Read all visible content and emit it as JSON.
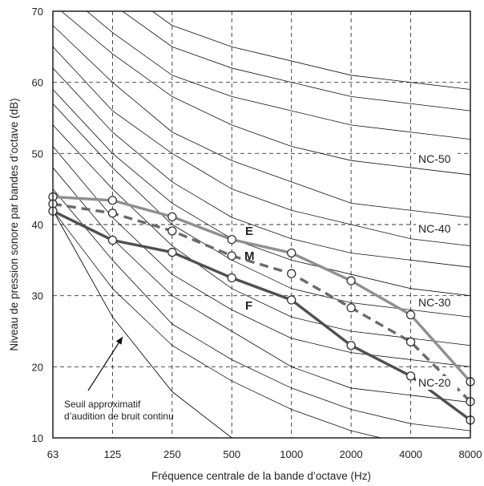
{
  "chart_data": {
    "type": "line",
    "xlabel": "Fréquence centrale de la bande d’octave (Hz)",
    "ylabel": "Niveau de pression sonore par bandes d’octave (dB)",
    "x": [
      "63",
      "125",
      "250",
      "500",
      "1000",
      "2000",
      "4000",
      "8000"
    ],
    "ylim": [
      10,
      70
    ],
    "yticks": [
      10,
      20,
      30,
      40,
      50,
      60,
      70
    ],
    "grid": true,
    "nc_curves": [
      {
        "values": [
          68,
          60,
          53,
          49,
          46,
          43,
          42,
          41
        ]
      },
      {
        "label": "NC-50",
        "values": [
          71,
          64,
          58,
          54,
          51,
          49,
          48,
          47
        ]
      },
      {
        "values": [
          74,
          67,
          61,
          58,
          56,
          54,
          53,
          52
        ]
      },
      {
        "values": [
          77,
          71,
          65,
          62,
          60,
          58,
          57,
          56
        ]
      },
      {
        "values": [
          80,
          74,
          68,
          65,
          63,
          61,
          60,
          59
        ]
      },
      {
        "values": [
          65,
          56,
          50,
          45,
          42,
          40,
          38,
          37
        ]
      },
      {
        "label": "NC-40",
        "values": [
          62,
          53,
          46,
          41,
          38,
          36,
          35,
          34
        ]
      },
      {
        "values": [
          59,
          50,
          43,
          38,
          35,
          33,
          31,
          30
        ]
      },
      {
        "label": "NC-30",
        "values": [
          57,
          48,
          40,
          35,
          31,
          29,
          28,
          27
        ]
      },
      {
        "values": [
          54,
          45,
          37,
          31,
          27,
          25,
          24,
          23
        ]
      },
      {
        "values": [
          51,
          41,
          33,
          28,
          24,
          22,
          21,
          20
        ]
      },
      {
        "label": "NC-20",
        "values": [
          48,
          38,
          30,
          25,
          20,
          17,
          16,
          15
        ]
      },
      {
        "values": [
          45,
          35,
          26,
          21,
          17,
          14,
          12,
          11
        ]
      },
      {
        "values": [
          42,
          31,
          23,
          18,
          14,
          11,
          9,
          8
        ]
      }
    ],
    "threshold": {
      "values": [
        42,
        27,
        16.5,
        10
      ],
      "annotation": [
        "Seuil approximatif",
        "d’audition de bruit continu"
      ]
    },
    "series": [
      {
        "name": "E",
        "color": "#8f8f8f",
        "dash": false,
        "values": [
          43.9,
          43.4,
          41.1,
          37.9,
          36.0,
          32.1,
          27.3,
          17.9
        ]
      },
      {
        "name": "M",
        "color": "#6a6a6a",
        "dash": true,
        "values": [
          42.9,
          41.6,
          39.1,
          35.6,
          33.1,
          28.3,
          23.5,
          15.1
        ]
      },
      {
        "name": "F",
        "color": "#505050",
        "dash": false,
        "values": [
          41.9,
          37.8,
          36.1,
          32.5,
          29.4,
          23.0,
          18.7,
          12.5
        ]
      }
    ]
  }
}
